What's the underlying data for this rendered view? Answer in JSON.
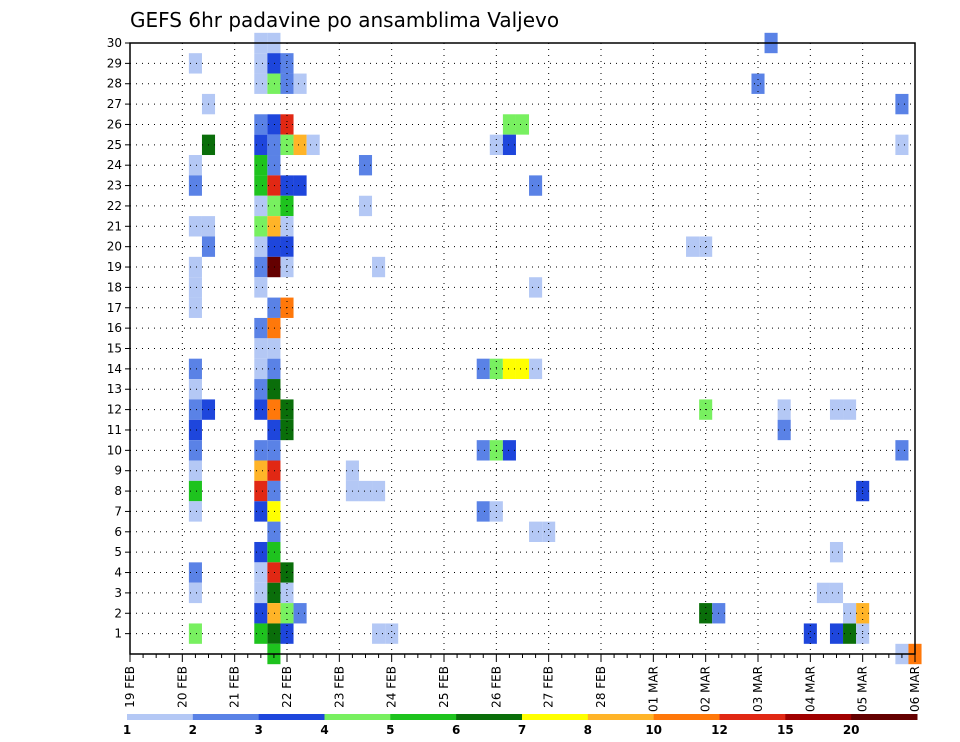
{
  "chart_data": {
    "type": "heatmap",
    "title": "GEFS 6hr padavine po ansamblima Valjevo",
    "x_ticks": [
      "19 FEB",
      "20 FEB",
      "21 FEB",
      "22 FEB",
      "23 FEB",
      "24 FEB",
      "25 FEB",
      "26 FEB",
      "27 FEB",
      "28 FEB",
      "01 MAR",
      "02 MAR",
      "03 MAR",
      "04 MAR",
      "05 MAR",
      "06 MAR"
    ],
    "y_ticks": [
      1,
      2,
      3,
      4,
      5,
      6,
      7,
      8,
      9,
      10,
      11,
      12,
      13,
      14,
      15,
      16,
      17,
      18,
      19,
      20,
      21,
      22,
      23,
      24,
      25,
      26,
      27,
      28,
      29,
      30
    ],
    "x_range_days": [
      0,
      15
    ],
    "y_range": [
      0,
      30
    ],
    "grid": true,
    "colorbar": {
      "labels": [
        "1",
        "2",
        "3",
        "4",
        "5",
        "6",
        "7",
        "8",
        "10",
        "12",
        "15",
        "20"
      ],
      "colors": [
        "#b4c8f5",
        "#5a82e6",
        "#1e46dc",
        "#78f060",
        "#1ec31e",
        "#0a6e0a",
        "#ffff00",
        "#ffb428",
        "#ff780a",
        "#e12814",
        "#a00000",
        "#640000"
      ]
    },
    "cells_note": "day = days after 19 FEB 00Z, member = ensemble member, level = colorbar index",
    "cells": [
      {
        "day": 1.25,
        "member": 29,
        "level": 0
      },
      {
        "day": 1.25,
        "member": 24,
        "level": 0
      },
      {
        "day": 1.25,
        "member": 23,
        "level": 1
      },
      {
        "day": 1.25,
        "member": 21,
        "level": 0
      },
      {
        "day": 1.5,
        "member": 21,
        "level": 0
      },
      {
        "day": 1.5,
        "member": 27,
        "level": 0
      },
      {
        "day": 1.5,
        "member": 25,
        "level": 5
      },
      {
        "day": 1.5,
        "member": 20,
        "level": 1
      },
      {
        "day": 1.25,
        "member": 19,
        "level": 0
      },
      {
        "day": 1.25,
        "member": 18,
        "level": 0
      },
      {
        "day": 1.25,
        "member": 17,
        "level": 0
      },
      {
        "day": 1.25,
        "member": 14,
        "level": 1
      },
      {
        "day": 1.25,
        "member": 13,
        "level": 0
      },
      {
        "day": 1.25,
        "member": 12,
        "level": 1
      },
      {
        "day": 1.5,
        "member": 12,
        "level": 2
      },
      {
        "day": 1.25,
        "member": 11,
        "level": 2
      },
      {
        "day": 1.25,
        "member": 10,
        "level": 1
      },
      {
        "day": 1.25,
        "member": 9,
        "level": 0
      },
      {
        "day": 1.25,
        "member": 8,
        "level": 4
      },
      {
        "day": 1.25,
        "member": 7,
        "level": 0
      },
      {
        "day": 1.25,
        "member": 4,
        "level": 1
      },
      {
        "day": 1.25,
        "member": 3,
        "level": 0
      },
      {
        "day": 1.25,
        "member": 1,
        "level": 3
      },
      {
        "day": 2.5,
        "member": 30,
        "level": 0
      },
      {
        "day": 2.75,
        "member": 30,
        "level": 0
      },
      {
        "day": 2.5,
        "member": 29,
        "level": 0
      },
      {
        "day": 2.75,
        "member": 29,
        "level": 2
      },
      {
        "day": 3.0,
        "member": 29,
        "level": 1
      },
      {
        "day": 2.5,
        "member": 28,
        "level": 0
      },
      {
        "day": 2.75,
        "member": 28,
        "level": 3
      },
      {
        "day": 3.0,
        "member": 28,
        "level": 1
      },
      {
        "day": 3.25,
        "member": 28,
        "level": 0
      },
      {
        "day": 2.5,
        "member": 26,
        "level": 1
      },
      {
        "day": 2.75,
        "member": 26,
        "level": 2
      },
      {
        "day": 3.0,
        "member": 26,
        "level": 9
      },
      {
        "day": 2.5,
        "member": 25,
        "level": 2
      },
      {
        "day": 2.75,
        "member": 25,
        "level": 1
      },
      {
        "day": 3.0,
        "member": 25,
        "level": 3
      },
      {
        "day": 3.25,
        "member": 25,
        "level": 7
      },
      {
        "day": 3.5,
        "member": 25,
        "level": 0
      },
      {
        "day": 2.5,
        "member": 24,
        "level": 4
      },
      {
        "day": 2.75,
        "member": 24,
        "level": 1
      },
      {
        "day": 2.5,
        "member": 23,
        "level": 4
      },
      {
        "day": 2.75,
        "member": 23,
        "level": 9
      },
      {
        "day": 3.0,
        "member": 23,
        "level": 2
      },
      {
        "day": 3.25,
        "member": 23,
        "level": 2
      },
      {
        "day": 2.5,
        "member": 22,
        "level": 0
      },
      {
        "day": 2.75,
        "member": 22,
        "level": 3
      },
      {
        "day": 3.0,
        "member": 22,
        "level": 4
      },
      {
        "day": 2.5,
        "member": 21,
        "level": 3
      },
      {
        "day": 2.75,
        "member": 21,
        "level": 7
      },
      {
        "day": 3.0,
        "member": 21,
        "level": 0
      },
      {
        "day": 2.5,
        "member": 20,
        "level": 0
      },
      {
        "day": 2.75,
        "member": 20,
        "level": 2
      },
      {
        "day": 3.0,
        "member": 20,
        "level": 2
      },
      {
        "day": 2.5,
        "member": 19,
        "level": 1
      },
      {
        "day": 2.75,
        "member": 19,
        "level": 11
      },
      {
        "day": 3.0,
        "member": 19,
        "level": 0
      },
      {
        "day": 2.5,
        "member": 18,
        "level": 0
      },
      {
        "day": 2.75,
        "member": 17,
        "level": 1
      },
      {
        "day": 3.0,
        "member": 17,
        "level": 8
      },
      {
        "day": 2.5,
        "member": 16,
        "level": 1
      },
      {
        "day": 2.75,
        "member": 16,
        "level": 8
      },
      {
        "day": 2.5,
        "member": 15,
        "level": 0
      },
      {
        "day": 2.75,
        "member": 15,
        "level": 0
      },
      {
        "day": 2.5,
        "member": 14,
        "level": 0
      },
      {
        "day": 2.75,
        "member": 14,
        "level": 1
      },
      {
        "day": 2.5,
        "member": 13,
        "level": 1
      },
      {
        "day": 2.75,
        "member": 13,
        "level": 5
      },
      {
        "day": 2.5,
        "member": 12,
        "level": 2
      },
      {
        "day": 2.75,
        "member": 12,
        "level": 8
      },
      {
        "day": 3.0,
        "member": 12,
        "level": 5
      },
      {
        "day": 2.75,
        "member": 11,
        "level": 2
      },
      {
        "day": 3.0,
        "member": 11,
        "level": 5
      },
      {
        "day": 2.5,
        "member": 10,
        "level": 1
      },
      {
        "day": 2.75,
        "member": 10,
        "level": 1
      },
      {
        "day": 2.5,
        "member": 9,
        "level": 7
      },
      {
        "day": 2.75,
        "member": 9,
        "level": 9
      },
      {
        "day": 2.5,
        "member": 8,
        "level": 9
      },
      {
        "day": 2.75,
        "member": 8,
        "level": 1
      },
      {
        "day": 2.5,
        "member": 7,
        "level": 2
      },
      {
        "day": 2.75,
        "member": 7,
        "level": 6
      },
      {
        "day": 2.75,
        "member": 6,
        "level": 1
      },
      {
        "day": 2.5,
        "member": 5,
        "level": 2
      },
      {
        "day": 2.75,
        "member": 5,
        "level": 4
      },
      {
        "day": 2.5,
        "member": 4,
        "level": 0
      },
      {
        "day": 2.75,
        "member": 4,
        "level": 9
      },
      {
        "day": 3.0,
        "member": 4,
        "level": 5
      },
      {
        "day": 2.5,
        "member": 3,
        "level": 0
      },
      {
        "day": 2.75,
        "member": 3,
        "level": 5
      },
      {
        "day": 3.0,
        "member": 3,
        "level": 0
      },
      {
        "day": 2.5,
        "member": 2,
        "level": 2
      },
      {
        "day": 2.75,
        "member": 2,
        "level": 7
      },
      {
        "day": 3.0,
        "member": 2,
        "level": 3
      },
      {
        "day": 3.25,
        "member": 2,
        "level": 1
      },
      {
        "day": 2.5,
        "member": 1,
        "level": 4
      },
      {
        "day": 2.75,
        "member": 1,
        "level": 5
      },
      {
        "day": 3.0,
        "member": 1,
        "level": 2
      },
      {
        "day": 2.75,
        "member": 0,
        "level": 4
      },
      {
        "day": 4.5,
        "member": 24,
        "level": 1
      },
      {
        "day": 4.5,
        "member": 22,
        "level": 0
      },
      {
        "day": 4.75,
        "member": 19,
        "level": 0
      },
      {
        "day": 4.25,
        "member": 9,
        "level": 0
      },
      {
        "day": 4.25,
        "member": 8,
        "level": 0
      },
      {
        "day": 4.5,
        "member": 8,
        "level": 0
      },
      {
        "day": 4.75,
        "member": 8,
        "level": 0
      },
      {
        "day": 4.75,
        "member": 1,
        "level": 0
      },
      {
        "day": 5.0,
        "member": 1,
        "level": 0
      },
      {
        "day": 7.25,
        "member": 26,
        "level": 3
      },
      {
        "day": 7.5,
        "member": 26,
        "level": 3
      },
      {
        "day": 7.0,
        "member": 25,
        "level": 0
      },
      {
        "day": 7.25,
        "member": 25,
        "level": 2
      },
      {
        "day": 7.75,
        "member": 23,
        "level": 1
      },
      {
        "day": 7.75,
        "member": 18,
        "level": 0
      },
      {
        "day": 6.75,
        "member": 14,
        "level": 1
      },
      {
        "day": 7.0,
        "member": 14,
        "level": 3
      },
      {
        "day": 7.25,
        "member": 14,
        "level": 6
      },
      {
        "day": 7.5,
        "member": 14,
        "level": 6
      },
      {
        "day": 7.75,
        "member": 14,
        "level": 0
      },
      {
        "day": 6.75,
        "member": 10,
        "level": 1
      },
      {
        "day": 7.0,
        "member": 10,
        "level": 3
      },
      {
        "day": 7.25,
        "member": 10,
        "level": 2
      },
      {
        "day": 6.75,
        "member": 7,
        "level": 1
      },
      {
        "day": 7.0,
        "member": 7,
        "level": 0
      },
      {
        "day": 7.75,
        "member": 6,
        "level": 0
      },
      {
        "day": 8.0,
        "member": 6,
        "level": 0
      },
      {
        "day": 10.75,
        "member": 20,
        "level": 0
      },
      {
        "day": 11.0,
        "member": 20,
        "level": 0
      },
      {
        "day": 11.0,
        "member": 12,
        "level": 3
      },
      {
        "day": 11.0,
        "member": 2,
        "level": 5
      },
      {
        "day": 11.25,
        "member": 2,
        "level": 1
      },
      {
        "day": 12.0,
        "member": 28,
        "level": 1
      },
      {
        "day": 12.25,
        "member": 30,
        "level": 1
      },
      {
        "day": 12.5,
        "member": 12,
        "level": 0
      },
      {
        "day": 12.5,
        "member": 11,
        "level": 1
      },
      {
        "day": 13.0,
        "member": 1,
        "level": 2
      },
      {
        "day": 13.5,
        "member": 12,
        "level": 0
      },
      {
        "day": 13.75,
        "member": 12,
        "level": 0
      },
      {
        "day": 13.25,
        "member": 3,
        "level": 0
      },
      {
        "day": 13.5,
        "member": 3,
        "level": 0
      },
      {
        "day": 13.5,
        "member": 5,
        "level": 0
      },
      {
        "day": 13.5,
        "member": 1,
        "level": 2
      },
      {
        "day": 13.75,
        "member": 1,
        "level": 5
      },
      {
        "day": 14.0,
        "member": 1,
        "level": 0
      },
      {
        "day": 13.75,
        "member": 2,
        "level": 0
      },
      {
        "day": 14.0,
        "member": 2,
        "level": 7
      },
      {
        "day": 14.0,
        "member": 8,
        "level": 2
      },
      {
        "day": 14.75,
        "member": 27,
        "level": 1
      },
      {
        "day": 14.75,
        "member": 25,
        "level": 0
      },
      {
        "day": 14.75,
        "member": 10,
        "level": 1
      },
      {
        "day": 14.75,
        "member": 0,
        "level": 0
      },
      {
        "day": 15.0,
        "member": 0,
        "level": 8
      }
    ]
  }
}
